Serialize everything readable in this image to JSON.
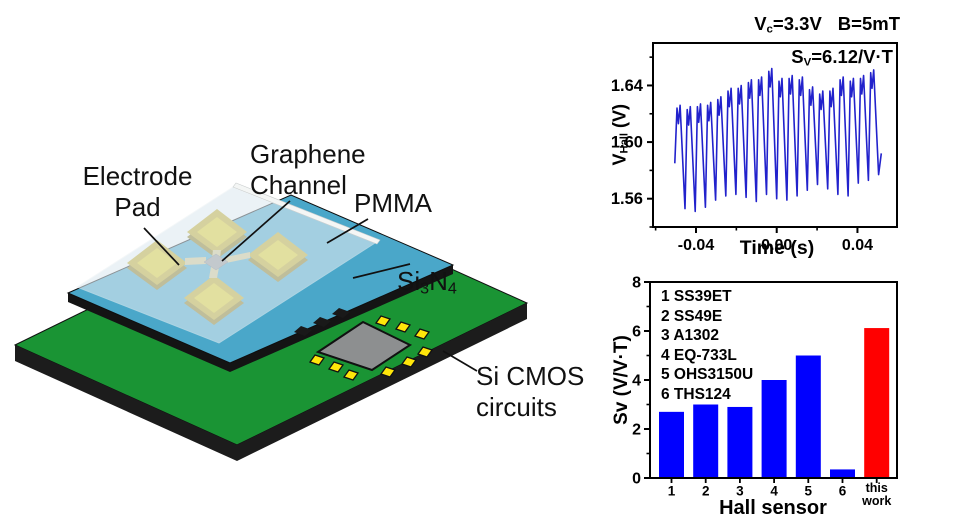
{
  "diagram": {
    "labels": {
      "electrode_pad": "Electrode\nPad",
      "graphene_channel": "Graphene\nChannel",
      "pmma": "PMMA",
      "si3n4": {
        "a": "Si",
        "a_sub": "3",
        "b": "N",
        "b_sub": "4"
      },
      "si_cmos": "Si CMOS\ncircuits"
    },
    "colors": {
      "board_green": "#1a9434",
      "edge_dark": "#1c1c1c",
      "nitride_blue": "#4aa7c9",
      "nitride_under": "#141414",
      "pmma_tint": "#dfeaf1",
      "pmma_edge": "#f4f6f5",
      "pad_rim": "#c8ad25",
      "pad_gold": "#e8d226",
      "pad_bevel": "#8f7d1b",
      "trace": "#d6c88f",
      "graphene_gray": "#999999",
      "die_gray": "#8d8f90",
      "pad_yellow": "#ffe60a",
      "black_pad": "#191919"
    }
  },
  "chart_data": [
    {
      "type": "line",
      "name": "hall_voltage_vs_time",
      "title_parts": {
        "v": "V",
        "v_sub": "c",
        "v_val": "=3.3V",
        "b": "B=5mT"
      },
      "annotation_parts": {
        "s": "S",
        "s_sub": "V",
        "val": "=6.12/V·T"
      },
      "ylabel_parts": {
        "v": "V",
        "v_sub": "Hall",
        "unit": " (V)"
      },
      "xlabel": "Time (s)",
      "xlim": [
        -0.0613,
        0.0596
      ],
      "ylim": [
        1.54,
        1.67
      ],
      "xticks": [
        {
          "v": -0.04,
          "label": "-0.04"
        },
        {
          "v": 0.0,
          "label": "0.00"
        },
        {
          "v": 0.04,
          "label": "0.04"
        }
      ],
      "xminor": [
        -0.06,
        -0.02,
        0.02
      ],
      "yticks": [
        {
          "v": 1.56,
          "label": "1.56"
        },
        {
          "v": 1.6,
          "label": "1.60"
        },
        {
          "v": 1.64,
          "label": "1.64"
        }
      ],
      "yminor": [
        1.54,
        1.58,
        1.62,
        1.66
      ],
      "line_color": "#2222cc",
      "grid": false,
      "waveform": {
        "t_start": -0.0505,
        "period": 0.00505,
        "cycle_shape": [
          [
            0.22,
            -0.002
          ],
          [
            0.35,
            -0.013
          ],
          [
            0.52,
            0
          ]
        ],
        "peaks": [
          1.626,
          1.625,
          1.627,
          1.628,
          1.632,
          1.638,
          1.64,
          1.644,
          1.646,
          1.652,
          1.645,
          1.647,
          1.646,
          1.639,
          1.636,
          1.638,
          1.646,
          1.645,
          1.647,
          1.651
        ],
        "valleys": [
          1.585,
          1.553,
          1.551,
          1.554,
          1.559,
          1.562,
          1.563,
          1.561,
          1.558,
          1.563,
          1.56,
          1.559,
          1.562,
          1.566,
          1.57,
          1.567,
          1.563,
          1.562,
          1.571,
          1.573,
          1.577
        ],
        "tail": [
          0.0518,
          1.592
        ]
      }
    },
    {
      "type": "bar",
      "name": "sensitivity_comparison",
      "categories": [
        "1",
        "2",
        "3",
        "4",
        "5",
        "6",
        "this\nwork"
      ],
      "values": [
        2.7,
        3.0,
        2.9,
        4.0,
        5.0,
        0.35,
        6.12
      ],
      "bar_colors": [
        "#0000ff",
        "#0000ff",
        "#0000ff",
        "#0000ff",
        "#0000ff",
        "#0000ff",
        "#ff0000"
      ],
      "legend": [
        "1 SS39ET",
        "2 SS49E",
        "3 A1302",
        "4 EQ-733L",
        "5 OHS3150U",
        "6 THS124"
      ],
      "ylabel": "Sv (V/V·T)",
      "xlabel": "Hall sensor",
      "ylim": [
        0,
        8
      ],
      "yticks": [
        {
          "v": 0,
          "label": "0"
        },
        {
          "v": 2,
          "label": "2"
        },
        {
          "v": 4,
          "label": "4"
        },
        {
          "v": 6,
          "label": "6"
        },
        {
          "v": 8,
          "label": "8"
        }
      ],
      "yminor": [
        1,
        3,
        5,
        7
      ],
      "grid": false,
      "legend_position": "top-left"
    }
  ]
}
